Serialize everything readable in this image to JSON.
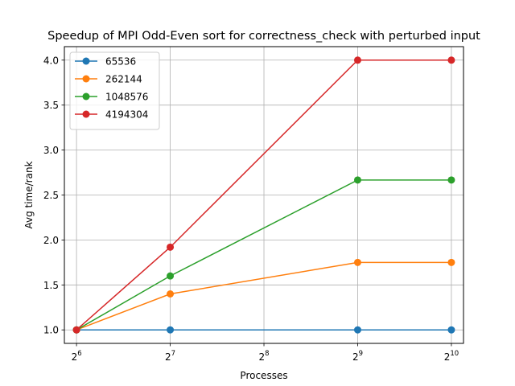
{
  "chart_data": {
    "type": "line",
    "title": "Speedup of MPI Odd-Even sort for correctness_check with perturbed input",
    "xlabel": "Processes",
    "ylabel": "Avg time/rank",
    "xscale": "log2",
    "x": [
      64,
      128,
      512,
      1024
    ],
    "xticks": [
      {
        "value": 64,
        "base": "2",
        "exp": "6"
      },
      {
        "value": 128,
        "base": "2",
        "exp": "7"
      },
      {
        "value": 256,
        "base": "2",
        "exp": "8"
      },
      {
        "value": 512,
        "base": "2",
        "exp": "9"
      },
      {
        "value": 1024,
        "base": "2",
        "exp": "10"
      }
    ],
    "xlim": [
      58.5,
      1120
    ],
    "ylim": [
      0.85,
      4.15
    ],
    "yticks": [
      "1.0",
      "1.5",
      "2.0",
      "2.5",
      "3.0",
      "3.5",
      "4.0"
    ],
    "grid": true,
    "legend_position": "top-left",
    "series": [
      {
        "name": "65536",
        "color": "#1f77b4",
        "values": [
          1.0,
          1.0,
          1.0,
          1.0
        ]
      },
      {
        "name": "262144",
        "color": "#ff7f0e",
        "values": [
          1.0,
          1.4,
          1.75,
          1.75
        ]
      },
      {
        "name": "1048576",
        "color": "#2ca02c",
        "values": [
          1.0,
          1.6,
          2.667,
          2.667
        ]
      },
      {
        "name": "4194304",
        "color": "#d62728",
        "values": [
          1.0,
          1.92,
          4.0,
          4.0
        ]
      }
    ]
  }
}
